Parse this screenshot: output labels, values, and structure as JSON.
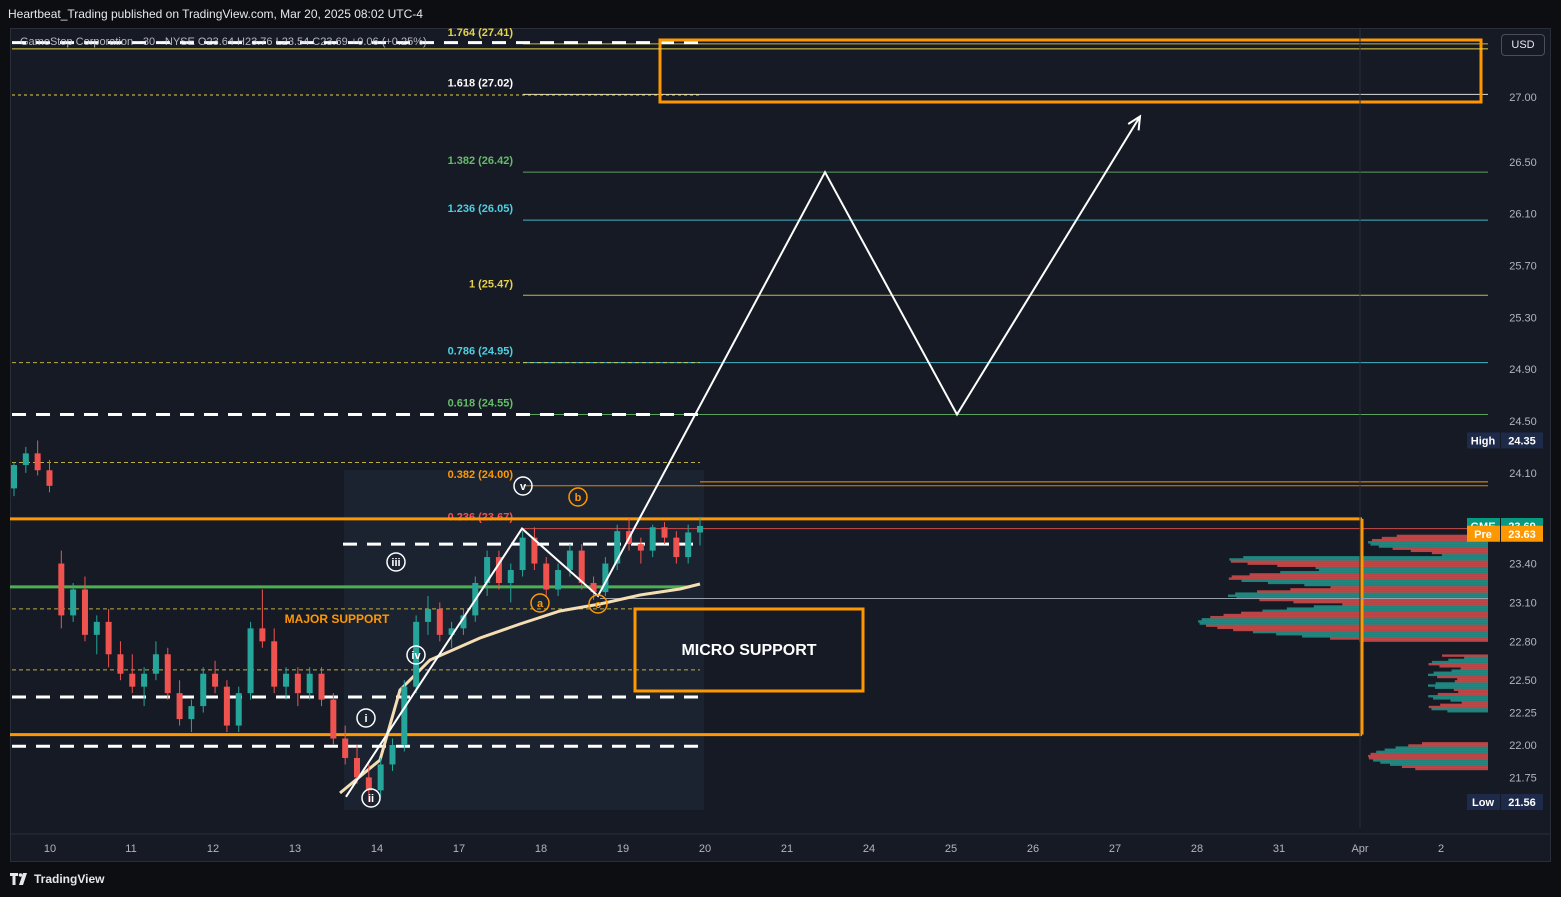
{
  "header": {
    "published_text": "Heartbeat_Trading published on TradingView.com, Mar 20, 2025 08:02 UTC-4",
    "symbol_line": "GameStop Corporation · 30 · NYSE  O23.64  H23.76  L23.54  C23.69  +0.06 (+0.25%)"
  },
  "toolbar": {
    "currency_label": "USD"
  },
  "branding": {
    "name": "TradingView",
    "logo_icon": "tradingview-logo-icon"
  },
  "colors": {
    "background": "#161a25",
    "up_candle": "#26a69a",
    "down_candle": "#ef5350",
    "orange": "#ff9800",
    "yellow_fib": "#e6d34a",
    "teal_fib": "#4dd0e1",
    "green_fib": "#66bb6a",
    "vwap": "#f5deb3",
    "support_green": "#4caf50",
    "projection": "#ffffff",
    "last_price_badge": "#089981",
    "pre_badge": "#ff9800",
    "high_low_badge": "#1e2a4a"
  },
  "chart_data": {
    "type": "candlestick",
    "symbol": "GME",
    "interval": "30",
    "exchange": "NYSE",
    "ohlc": {
      "open": 23.64,
      "high": 23.76,
      "low": 23.54,
      "close": 23.69,
      "change": "+0.06 (+0.25%)"
    },
    "y_axis": {
      "ticks": [
        "27.00",
        "26.50",
        "26.10",
        "25.70",
        "25.30",
        "24.90",
        "24.50",
        "24.10",
        "23.40",
        "23.10",
        "22.80",
        "22.50",
        "22.25",
        "22.00",
        "21.75"
      ],
      "range": [
        21.45,
        27.45
      ]
    },
    "x_axis": {
      "ticks": [
        "10",
        "11",
        "12",
        "13",
        "14",
        "17",
        "18",
        "19",
        "20",
        "21",
        "24",
        "25",
        "26",
        "27",
        "28",
        "31",
        "Apr",
        "2"
      ]
    },
    "price_badges": [
      {
        "label": "High",
        "value": "24.35",
        "price": 24.35,
        "kind": "high"
      },
      {
        "label": "GME",
        "value": "23.69",
        "price": 23.69,
        "kind": "last"
      },
      {
        "label": "Pre",
        "value": "23.63",
        "price": 23.63,
        "kind": "pre"
      },
      {
        "label": "Low",
        "value": "21.56",
        "price": 21.56,
        "kind": "low"
      }
    ],
    "fib_levels": [
      {
        "label": "1.764 (27.41)",
        "price": 27.41,
        "color": "#e6d34a"
      },
      {
        "label": "1.618 (27.02)",
        "price": 27.02,
        "color": "#ffffff"
      },
      {
        "label": "1.382 (26.42)",
        "price": 26.42,
        "color": "#66bb6a"
      },
      {
        "label": "1.236 (26.05)",
        "price": 26.05,
        "color": "#4dd0e1"
      },
      {
        "label": "1 (25.47)",
        "price": 25.47,
        "color": "#e6d34a"
      },
      {
        "label": "0.786 (24.95)",
        "price": 24.95,
        "color": "#4dd0e1"
      },
      {
        "label": "0.618 (24.55)",
        "price": 24.55,
        "color": "#66bb6a"
      },
      {
        "label": "0.382 (24.00)",
        "price": 24.0,
        "color": "#ff9800"
      },
      {
        "label": "0.236 (23.67)",
        "price": 23.67,
        "color": "#ef5350"
      }
    ],
    "annotations": [
      {
        "text": "MAJOR SUPPORT",
        "color": "#ff9800"
      },
      {
        "text": "MICRO SUPPORT",
        "color": "#ffffff"
      }
    ],
    "wave_labels": [
      "i",
      "ii",
      "iii",
      "iv",
      "v",
      "a",
      "b",
      "c"
    ],
    "candles": [
      [
        23.98,
        24.18,
        23.92,
        24.16
      ],
      [
        24.16,
        24.3,
        24.1,
        24.25
      ],
      [
        24.25,
        24.35,
        24.08,
        24.12
      ],
      [
        24.12,
        24.2,
        23.95,
        24.0
      ],
      [
        23.4,
        23.5,
        22.9,
        23.0
      ],
      [
        23.0,
        23.25,
        22.95,
        23.2
      ],
      [
        23.2,
        23.3,
        22.8,
        22.85
      ],
      [
        22.85,
        23.0,
        22.7,
        22.95
      ],
      [
        22.95,
        23.05,
        22.6,
        22.7
      ],
      [
        22.7,
        22.8,
        22.5,
        22.55
      ],
      [
        22.55,
        22.7,
        22.4,
        22.45
      ],
      [
        22.45,
        22.6,
        22.3,
        22.55
      ],
      [
        22.55,
        22.8,
        22.5,
        22.7
      ],
      [
        22.7,
        22.75,
        22.35,
        22.4
      ],
      [
        22.4,
        22.5,
        22.15,
        22.2
      ],
      [
        22.2,
        22.35,
        22.1,
        22.3
      ],
      [
        22.3,
        22.6,
        22.25,
        22.55
      ],
      [
        22.55,
        22.65,
        22.4,
        22.45
      ],
      [
        22.45,
        22.5,
        22.1,
        22.15
      ],
      [
        22.15,
        22.45,
        22.1,
        22.4
      ],
      [
        22.4,
        22.95,
        22.35,
        22.9
      ],
      [
        22.9,
        23.2,
        22.75,
        22.8
      ],
      [
        22.8,
        22.9,
        22.4,
        22.45
      ],
      [
        22.45,
        22.6,
        22.35,
        22.55
      ],
      [
        22.55,
        22.6,
        22.3,
        22.4
      ],
      [
        22.4,
        22.6,
        22.35,
        22.55
      ],
      [
        22.55,
        22.6,
        22.3,
        22.35
      ],
      [
        22.35,
        22.4,
        22.0,
        22.05
      ],
      [
        22.05,
        22.15,
        21.85,
        21.9
      ],
      [
        21.9,
        22.0,
        21.7,
        21.75
      ],
      [
        21.75,
        21.85,
        21.56,
        21.65
      ],
      [
        21.65,
        21.9,
        21.6,
        21.85
      ],
      [
        21.85,
        22.05,
        21.8,
        22.0
      ],
      [
        22.0,
        22.5,
        21.95,
        22.45
      ],
      [
        22.45,
        23.0,
        22.4,
        22.95
      ],
      [
        22.95,
        23.15,
        22.85,
        23.05
      ],
      [
        23.05,
        23.1,
        22.8,
        22.85
      ],
      [
        22.85,
        22.95,
        22.75,
        22.9
      ],
      [
        22.9,
        23.05,
        22.85,
        23.0
      ],
      [
        23.0,
        23.3,
        22.95,
        23.25
      ],
      [
        23.25,
        23.5,
        23.15,
        23.45
      ],
      [
        23.45,
        23.5,
        23.2,
        23.25
      ],
      [
        23.25,
        23.4,
        23.1,
        23.35
      ],
      [
        23.35,
        23.65,
        23.3,
        23.6
      ],
      [
        23.6,
        23.68,
        23.35,
        23.4
      ],
      [
        23.4,
        23.45,
        23.15,
        23.2
      ],
      [
        23.2,
        23.4,
        23.15,
        23.35
      ],
      [
        23.35,
        23.55,
        23.3,
        23.5
      ],
      [
        23.5,
        23.55,
        23.2,
        23.25
      ],
      [
        23.25,
        23.3,
        23.12,
        23.18
      ],
      [
        23.18,
        23.45,
        23.15,
        23.4
      ],
      [
        23.4,
        23.7,
        23.35,
        23.65
      ],
      [
        23.65,
        23.75,
        23.5,
        23.55
      ],
      [
        23.55,
        23.6,
        23.4,
        23.5
      ],
      [
        23.5,
        23.7,
        23.45,
        23.68
      ],
      [
        23.68,
        23.72,
        23.55,
        23.6
      ],
      [
        23.6,
        23.65,
        23.4,
        23.45
      ],
      [
        23.45,
        23.7,
        23.4,
        23.64
      ],
      [
        23.64,
        23.76,
        23.54,
        23.69
      ]
    ],
    "projection_path": [
      {
        "price": 21.6
      },
      {
        "price": 23.67
      },
      {
        "price": 23.15
      },
      {
        "price": 26.42
      },
      {
        "price": 24.55
      },
      {
        "price": 26.85
      }
    ]
  }
}
